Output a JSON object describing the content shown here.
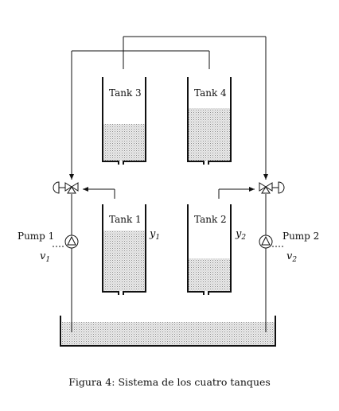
{
  "tanks": [
    {
      "id": 1,
      "label": "Tank 1",
      "output": "y",
      "output_sub": "1"
    },
    {
      "id": 2,
      "label": "Tank 2",
      "output": "y",
      "output_sub": "2"
    },
    {
      "id": 3,
      "label": "Tank 3"
    },
    {
      "id": 4,
      "label": "Tank 4"
    }
  ],
  "pumps": [
    {
      "label": "Pump 1",
      "input": "v",
      "input_sub": "1"
    },
    {
      "label": "Pump 2",
      "input": "v",
      "input_sub": "2"
    }
  ],
  "caption": "Figura 4: Sistema de los cuatro tanques"
}
